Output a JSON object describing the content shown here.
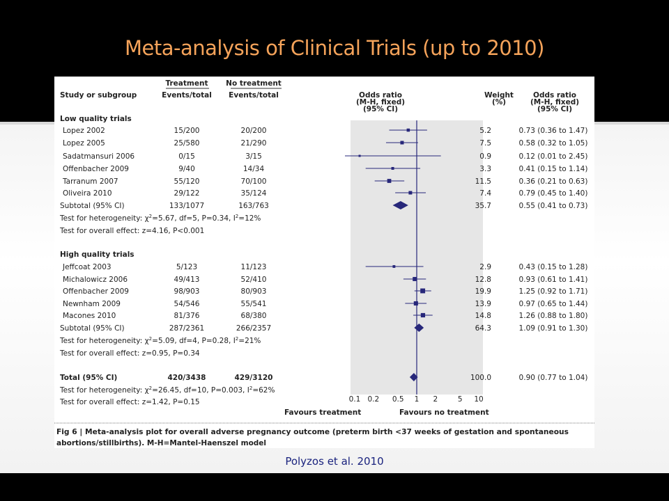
{
  "slide": {
    "title": "Meta-analysis of Clinical Trials (up to 2010)",
    "citation": "Polyzos et al. 2010"
  },
  "colors": {
    "title": "#f5a35a",
    "marker": "#27277a",
    "citation": "#1a237e"
  },
  "chart_data": {
    "type": "forest",
    "scale": "log",
    "xlim": [
      0.1,
      10
    ],
    "x_ticks": [
      "0.1",
      "0.2",
      "0.5",
      "1",
      "2",
      "5",
      "10"
    ],
    "x_tick_values": [
      0.1,
      0.2,
      0.5,
      1,
      2,
      5,
      10
    ],
    "favours_left": "Favours treatment",
    "favours_right": "Favours no treatment",
    "headers": {
      "study": "Study or subgroup",
      "treatment_group": "Treatment",
      "treatment": "Events/total",
      "no_treatment_group": "No treatment",
      "no_treatment": "Events/total",
      "odds_ratio": [
        "Odds ratio",
        "(M-H, fixed)",
        "(95% CI)"
      ],
      "weight": [
        "Weight",
        "(%)"
      ],
      "or_text": [
        "Odds ratio",
        "(M-H, fixed)",
        "(95% CI)"
      ]
    },
    "groups": [
      {
        "name": "Low quality trials",
        "studies": [
          {
            "name": "Lopez 2002",
            "treatment": "15/200",
            "no_treatment": "20/200",
            "weight": "5.2",
            "or_text": "0.73 (0.36 to 1.47)",
            "or": 0.73,
            "lo": 0.36,
            "hi": 1.47,
            "w": 5.2
          },
          {
            "name": "Lopez 2005",
            "treatment": "25/580",
            "no_treatment": "21/290",
            "weight": "7.5",
            "or_text": "0.58 (0.32 to 1.05)",
            "or": 0.58,
            "lo": 0.32,
            "hi": 1.05,
            "w": 7.5
          },
          {
            "name": "Sadatmansuri 2006",
            "treatment": "0/15",
            "no_treatment": "3/15",
            "weight": "0.9",
            "or_text": "0.12 (0.01 to 2.45)",
            "or": 0.12,
            "lo": 0.01,
            "hi": 2.45,
            "w": 0.9
          },
          {
            "name": "Offenbacher 2009",
            "treatment": "9/40",
            "no_treatment": "14/34",
            "weight": "3.3",
            "or_text": "0.41 (0.15 to 1.14)",
            "or": 0.41,
            "lo": 0.15,
            "hi": 1.14,
            "w": 3.3
          },
          {
            "name": "Tarranum 2007",
            "treatment": "55/120",
            "no_treatment": "70/100",
            "weight": "11.5",
            "or_text": "0.36 (0.21 to 0.63)",
            "or": 0.36,
            "lo": 0.21,
            "hi": 0.63,
            "w": 11.5
          },
          {
            "name": "Oliveira 2010",
            "treatment": "29/122",
            "no_treatment": "35/124",
            "weight": "7.4",
            "or_text": "0.79 (0.45 to 1.40)",
            "or": 0.79,
            "lo": 0.45,
            "hi": 1.4,
            "w": 7.4
          }
        ],
        "subtotal": {
          "name": "Subtotal (95% CI)",
          "treatment": "133/1077",
          "no_treatment": "163/763",
          "weight": "35.7",
          "or_text": "0.55 (0.41 to 0.73)",
          "or": 0.55,
          "lo": 0.41,
          "hi": 0.73
        },
        "heterogeneity": {
          "prefix": "Test for heterogeneity: ",
          "chi": "χ",
          "sup2": "2",
          "mid": "=5.67, df=5, P=0.34, I",
          "end": "=12%"
        },
        "overall_effect": "Test for overall effect: z=4.16, P<0.001"
      },
      {
        "name": "High quality trials",
        "studies": [
          {
            "name": "Jeffcoat 2003",
            "treatment": "5/123",
            "no_treatment": "11/123",
            "weight": "2.9",
            "or_text": "0.43 (0.15 to 1.28)",
            "or": 0.43,
            "lo": 0.15,
            "hi": 1.28,
            "w": 2.9
          },
          {
            "name": "Michalowicz 2006",
            "treatment": "49/413",
            "no_treatment": "52/410",
            "weight": "12.8",
            "or_text": "0.93 (0.61 to 1.41)",
            "or": 0.93,
            "lo": 0.61,
            "hi": 1.41,
            "w": 12.8
          },
          {
            "name": "Offenbacher 2009",
            "treatment": "98/903",
            "no_treatment": "80/903",
            "weight": "19.9",
            "or_text": "1.25 (0.92 to 1.71)",
            "or": 1.25,
            "lo": 0.92,
            "hi": 1.71,
            "w": 19.9
          },
          {
            "name": "Newnham 2009",
            "treatment": "54/546",
            "no_treatment": "55/541",
            "weight": "13.9",
            "or_text": "0.97 (0.65 to 1.44)",
            "or": 0.97,
            "lo": 0.65,
            "hi": 1.44,
            "w": 13.9
          },
          {
            "name": "Macones 2010",
            "treatment": "81/376",
            "no_treatment": "68/380",
            "weight": "14.8",
            "or_text": "1.26 (0.88 to 1.80)",
            "or": 1.26,
            "lo": 0.88,
            "hi": 1.8,
            "w": 14.8
          }
        ],
        "subtotal": {
          "name": "Subtotal (95% CI)",
          "treatment": "287/2361",
          "no_treatment": "266/2357",
          "weight": "64.3",
          "or_text": "1.09 (0.91 to 1.30)",
          "or": 1.09,
          "lo": 0.91,
          "hi": 1.3
        },
        "heterogeneity": {
          "prefix": "Test for heterogeneity: ",
          "chi": "χ",
          "sup2": "2",
          "mid": "=5.09, df=4, P=0.28, I",
          "end": "=21%"
        },
        "overall_effect": "Test for overall effect: z=0.95, P=0.34"
      }
    ],
    "total": {
      "name": "Total (95% CI)",
      "treatment": "420/3438",
      "no_treatment": "429/3120",
      "weight": "100.0",
      "or_text": "0.90 (0.77 to 1.04)",
      "or": 0.9,
      "lo": 0.77,
      "hi": 1.04
    },
    "total_heterogeneity": {
      "prefix": "Test for heterogeneity: ",
      "chi": "χ",
      "sup2": "2",
      "mid": "=26.45, df=10, P=0.003, I",
      "end": "=62%"
    },
    "total_overall_effect": "Test for overall effect: z=1.42, P=0.15",
    "caption": {
      "label": "Fig 6 |",
      "line1": "Meta-analysis plot for overall adverse pregnancy outcome (preterm birth <37 weeks of gestation and spontaneous",
      "line2": "abortions/stillbirths). M-H=Mantel-Haenszel model"
    }
  }
}
